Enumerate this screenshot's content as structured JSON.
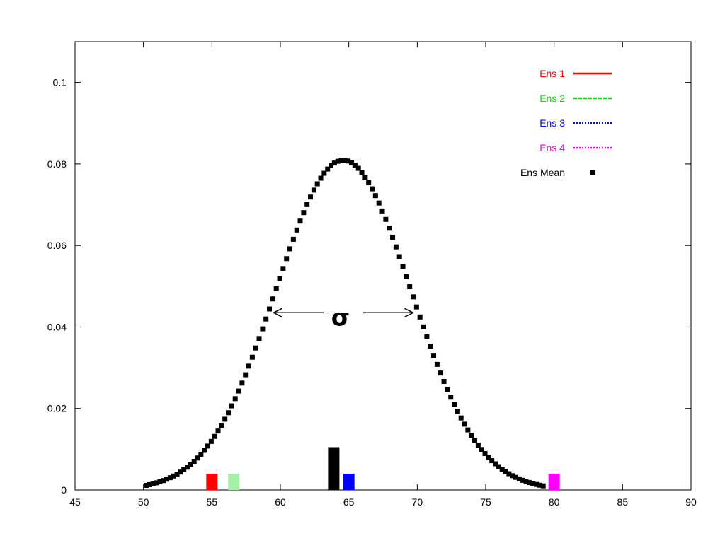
{
  "chart_data": {
    "type": "scatter",
    "title": "",
    "xlabel": "",
    "ylabel": "",
    "xlim": [
      45,
      90
    ],
    "ylim": [
      0,
      0.11
    ],
    "grid": false,
    "legend_position": "top-right",
    "x_ticks": [
      "45",
      "50",
      "55",
      "60",
      "65",
      "70",
      "75",
      "80",
      "85",
      "90"
    ],
    "y_ticks": [
      "0",
      "0.02",
      "0.04",
      "0.06",
      "0.08",
      "0.1"
    ],
    "series": [
      {
        "name": "Ens 1",
        "color": "#ff0000",
        "style": "solid"
      },
      {
        "name": "Ens 2",
        "color": "#00dd00",
        "style": "dashed"
      },
      {
        "name": "Ens 3",
        "color": "#0000ff",
        "style": "dotted"
      },
      {
        "name": "Ens 4",
        "color": "#ff00ff",
        "style": "dotted"
      },
      {
        "name": "Ens Mean",
        "color": "#000000",
        "style": "points"
      }
    ],
    "mean_curve": {
      "mean": 64.6,
      "sd": 4.93,
      "x_start": 50.2,
      "x_end": 79.2,
      "step": 0.25
    },
    "bars": [
      {
        "x": 55.0,
        "height": 0.004,
        "color": "#ff0000"
      },
      {
        "x": 56.6,
        "height": 0.004,
        "color": "#a6f0a6"
      },
      {
        "x": 63.9,
        "height": 0.0105,
        "color": "#000000"
      },
      {
        "x": 65.0,
        "height": 0.004,
        "color": "#0000ff"
      },
      {
        "x": 80.0,
        "height": 0.004,
        "color": "#ff00ff"
      }
    ],
    "sigma_annotation": {
      "label": "σ",
      "y": 0.0435,
      "x_from": 59.5,
      "x_to": 69.7
    }
  }
}
